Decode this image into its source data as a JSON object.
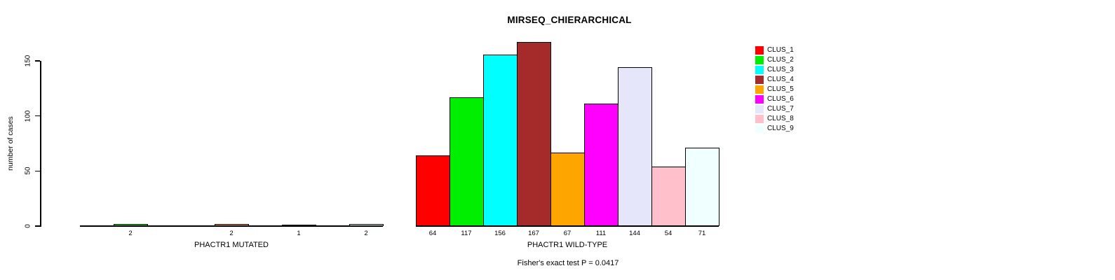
{
  "chart_data": {
    "type": "bar",
    "title": "MIRSEQ_CHIERARCHICAL",
    "ylabel": "number of cases",
    "annotation": "Fisher's exact test P = 0.0417",
    "yticks": [
      0,
      50,
      100,
      150
    ],
    "ylim": [
      0,
      170
    ],
    "grid": false,
    "legend_position": "right",
    "background_color": "#ffffff",
    "axis_color": "#000000",
    "clusters": [
      {
        "name": "CLUS_1",
        "color": "#FF0000"
      },
      {
        "name": "CLUS_2",
        "color": "#00EE00"
      },
      {
        "name": "CLUS_3",
        "color": "#00FFFF"
      },
      {
        "name": "CLUS_4",
        "color": "#A52A2A"
      },
      {
        "name": "CLUS_5",
        "color": "#FFA500"
      },
      {
        "name": "CLUS_6",
        "color": "#FF00FF"
      },
      {
        "name": "CLUS_7",
        "color": "#E6E6FA"
      },
      {
        "name": "CLUS_8",
        "color": "#FFC0CB"
      },
      {
        "name": "CLUS_9",
        "color": "#F0FFFF"
      }
    ],
    "groups": [
      {
        "label": "PHACTR1 MUTATED",
        "slots": 9,
        "bars": [
          {
            "cluster": "CLUS_2",
            "slot": 1,
            "value": 2
          },
          {
            "cluster": "CLUS_5",
            "slot": 4,
            "value": 2
          },
          {
            "cluster": "CLUS_7",
            "slot": 6,
            "value": 1
          },
          {
            "cluster": "CLUS_9",
            "slot": 8,
            "value": 2
          }
        ]
      },
      {
        "label": "PHACTR1 WILD-TYPE",
        "slots": 9,
        "bars": [
          {
            "cluster": "CLUS_1",
            "slot": 0,
            "value": 64
          },
          {
            "cluster": "CLUS_2",
            "slot": 1,
            "value": 117
          },
          {
            "cluster": "CLUS_3",
            "slot": 2,
            "value": 156
          },
          {
            "cluster": "CLUS_4",
            "slot": 3,
            "value": 167
          },
          {
            "cluster": "CLUS_5",
            "slot": 4,
            "value": 67
          },
          {
            "cluster": "CLUS_6",
            "slot": 5,
            "value": 111
          },
          {
            "cluster": "CLUS_7",
            "slot": 6,
            "value": 144
          },
          {
            "cluster": "CLUS_8",
            "slot": 7,
            "value": 54
          },
          {
            "cluster": "CLUS_9",
            "slot": 8,
            "value": 71
          }
        ]
      }
    ]
  }
}
